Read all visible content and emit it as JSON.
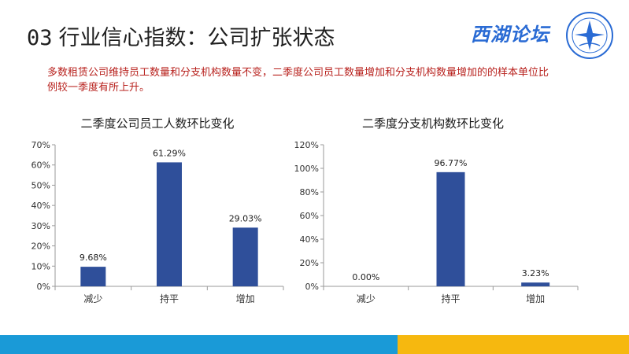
{
  "header": {
    "number": "03",
    "title": "行业信心指数：公司扩张状态",
    "logo_text": "西湖论坛"
  },
  "subtitle": "多数租赁公司维持员工数量和分支机构数量不变，二季度公司员工数量增加和分支机构数量增加的的样本单位比例较一季度有所上升。",
  "colors": {
    "bar": "#2f4f9a",
    "subtitle": "#b8221e",
    "footer_blue": "#1a9ad7",
    "footer_yellow": "#f6b80f",
    "logo": "#2a6bd4"
  },
  "chart_data": [
    {
      "type": "bar",
      "title": "二季度公司员工人数环比变化",
      "categories": [
        "减少",
        "持平",
        "增加"
      ],
      "values": [
        9.68,
        61.29,
        29.03
      ],
      "value_labels": [
        "9.68%",
        "61.29%",
        "29.03%"
      ],
      "ylim": [
        0,
        70
      ],
      "yticks": [
        0,
        10,
        20,
        30,
        40,
        50,
        60,
        70
      ],
      "ytick_labels": [
        "0%",
        "10%",
        "20%",
        "30%",
        "40%",
        "50%",
        "60%",
        "70%"
      ],
      "xlabel": "",
      "ylabel": "",
      "grid": false
    },
    {
      "type": "bar",
      "title": "二季度分支机构数环比变化",
      "categories": [
        "减少",
        "持平",
        "增加"
      ],
      "values": [
        0.0,
        96.77,
        3.23
      ],
      "value_labels": [
        "0.00%",
        "96.77%",
        "3.23%"
      ],
      "ylim": [
        0,
        120
      ],
      "yticks": [
        0,
        20,
        40,
        60,
        80,
        100,
        120
      ],
      "ytick_labels": [
        "0%",
        "20%",
        "40%",
        "60%",
        "80%",
        "100%",
        "120%"
      ],
      "xlabel": "",
      "ylabel": "",
      "grid": false
    }
  ]
}
